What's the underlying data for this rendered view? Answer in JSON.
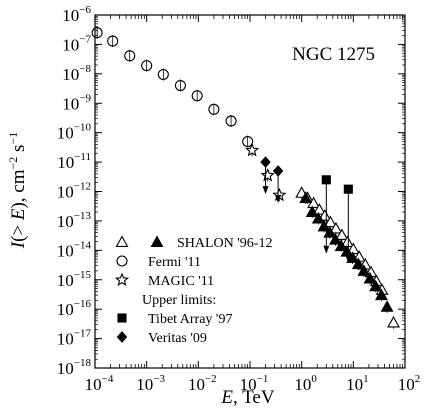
{
  "chart_data": {
    "type": "scatter",
    "title": "NGC 1275",
    "xlabel": {
      "italic": "E",
      "rest": ", TeV"
    },
    "ylabel": {
      "italic": "I",
      "paren_open": "(> ",
      "italic2": "E",
      "paren_close": "), cm",
      "exp1": "−2",
      "mid": " s",
      "exp2": "−1"
    },
    "x_scale": "log",
    "y_scale": "log",
    "xlim": [
      0.0001,
      100
    ],
    "ylim": [
      1e-18,
      1e-06
    ],
    "x_ticks": [
      {
        "value": 0.0001,
        "base": "10",
        "exp": "−4"
      },
      {
        "value": 0.001,
        "base": "10",
        "exp": "−3"
      },
      {
        "value": 0.01,
        "base": "10",
        "exp": "−2"
      },
      {
        "value": 0.1,
        "base": "10",
        "exp": "−1"
      },
      {
        "value": 1,
        "base": "10",
        "exp": "0"
      },
      {
        "value": 10,
        "base": "10",
        "exp": "1"
      },
      {
        "value": 100,
        "base": "10",
        "exp": "2"
      }
    ],
    "y_ticks": [
      {
        "value": 1e-06,
        "base": "10",
        "exp": "−6"
      },
      {
        "value": 1e-07,
        "base": "10",
        "exp": "−7"
      },
      {
        "value": 1e-08,
        "base": "10",
        "exp": "−8"
      },
      {
        "value": 1e-09,
        "base": "10",
        "exp": "−9"
      },
      {
        "value": 1e-10,
        "base": "10",
        "exp": "−10"
      },
      {
        "value": 1e-11,
        "base": "10",
        "exp": "−11"
      },
      {
        "value": 1e-12,
        "base": "10",
        "exp": "−12"
      },
      {
        "value": 1e-13,
        "base": "10",
        "exp": "−13"
      },
      {
        "value": 1e-14,
        "base": "10",
        "exp": "−14"
      },
      {
        "value": 1e-15,
        "base": "10",
        "exp": "−15"
      },
      {
        "value": 1e-16,
        "base": "10",
        "exp": "−16"
      },
      {
        "value": 1e-17,
        "base": "10",
        "exp": "−17"
      },
      {
        "value": 1e-18,
        "base": "10",
        "exp": "−18"
      }
    ],
    "legend": {
      "placement": "bottom-left",
      "items": [
        {
          "label": "SHALON '96-12",
          "symbols": [
            "triangle-open",
            "triangle-filled"
          ]
        },
        {
          "label": "Fermi '11",
          "symbols": [
            "circle-open"
          ]
        },
        {
          "label": "MAGIC '11",
          "symbols": [
            "star-open"
          ]
        },
        {
          "label": "Upper limits:",
          "symbols": []
        },
        {
          "label": "Tibet Array '97",
          "symbols": [
            "square-filled"
          ]
        },
        {
          "label": "Veritas '09",
          "symbols": [
            "diamond-filled"
          ]
        }
      ]
    },
    "series": [
      {
        "name": "Fermi '11",
        "marker": "circle-open",
        "points": [
          {
            "x": 0.00011,
            "y": 2.5e-07
          },
          {
            "x": 0.00022,
            "y": 1.3e-07
          },
          {
            "x": 0.00047,
            "y": 4.1e-08
          },
          {
            "x": 0.001,
            "y": 1.9e-08
          },
          {
            "x": 0.0021,
            "y": 9.5e-09
          },
          {
            "x": 0.0045,
            "y": 4e-09
          },
          {
            "x": 0.0095,
            "y": 1.8e-09
          },
          {
            "x": 0.02,
            "y": 6.2e-10
          },
          {
            "x": 0.043,
            "y": 2.5e-10
          },
          {
            "x": 0.09,
            "y": 5e-11
          }
        ]
      },
      {
        "name": "MAGIC '11",
        "marker": "star-open",
        "points": [
          {
            "x": 0.11,
            "y": 2.5e-11
          },
          {
            "x": 0.22,
            "y": 3.5e-12
          },
          {
            "x": 0.37,
            "y": 7.5e-13
          }
        ]
      },
      {
        "name": "SHALON '96-12 (open)",
        "marker": "triangle-open",
        "points": [
          {
            "x": 1.0,
            "y": 9e-13
          },
          {
            "x": 1.3,
            "y": 6e-13
          },
          {
            "x": 1.7,
            "y": 4e-13
          },
          {
            "x": 2.2,
            "y": 2.4e-13
          },
          {
            "x": 2.8,
            "y": 1.5e-13
          },
          {
            "x": 3.6,
            "y": 9e-14
          },
          {
            "x": 4.6,
            "y": 5.5e-14
          },
          {
            "x": 6.0,
            "y": 3.3e-14
          },
          {
            "x": 7.7,
            "y": 1.9e-14
          },
          {
            "x": 10,
            "y": 1.1e-14
          },
          {
            "x": 13,
            "y": 6e-15
          },
          {
            "x": 17,
            "y": 3.3e-15
          },
          {
            "x": 22,
            "y": 1.8e-15
          },
          {
            "x": 28,
            "y": 9e-16
          },
          {
            "x": 36,
            "y": 4.5e-16
          },
          {
            "x": 60,
            "y": 3.5e-17
          }
        ]
      },
      {
        "name": "SHALON '96-12 (filled)",
        "marker": "triangle-filled",
        "points": [
          {
            "x": 1.2,
            "y": 6e-13
          },
          {
            "x": 1.6,
            "y": 2e-13
          },
          {
            "x": 2.1,
            "y": 1.2e-13
          },
          {
            "x": 2.7,
            "y": 6.5e-14
          },
          {
            "x": 3.5,
            "y": 4e-14
          },
          {
            "x": 4.5,
            "y": 2.3e-14
          },
          {
            "x": 5.8,
            "y": 1.4e-14
          },
          {
            "x": 7.5,
            "y": 9e-15
          },
          {
            "x": 9.7,
            "y": 5.5e-15
          },
          {
            "x": 12.5,
            "y": 3.4e-15
          },
          {
            "x": 16,
            "y": 2e-15
          },
          {
            "x": 21,
            "y": 1.1e-15
          },
          {
            "x": 27,
            "y": 6e-16
          },
          {
            "x": 35,
            "y": 3e-16
          },
          {
            "x": 45,
            "y": 1.2e-16
          }
        ]
      },
      {
        "name": "Tibet Array '97",
        "marker": "square-filled",
        "upper_limit": true,
        "points": [
          {
            "x": 3.0,
            "y": 2.5e-12
          },
          {
            "x": 8.0,
            "y": 1.2e-12
          }
        ]
      },
      {
        "name": "Veritas '09",
        "marker": "diamond-filled",
        "upper_limit": true,
        "points": [
          {
            "x": 0.2,
            "y": 1e-11
          },
          {
            "x": 0.35,
            "y": 5e-12
          }
        ]
      }
    ]
  }
}
